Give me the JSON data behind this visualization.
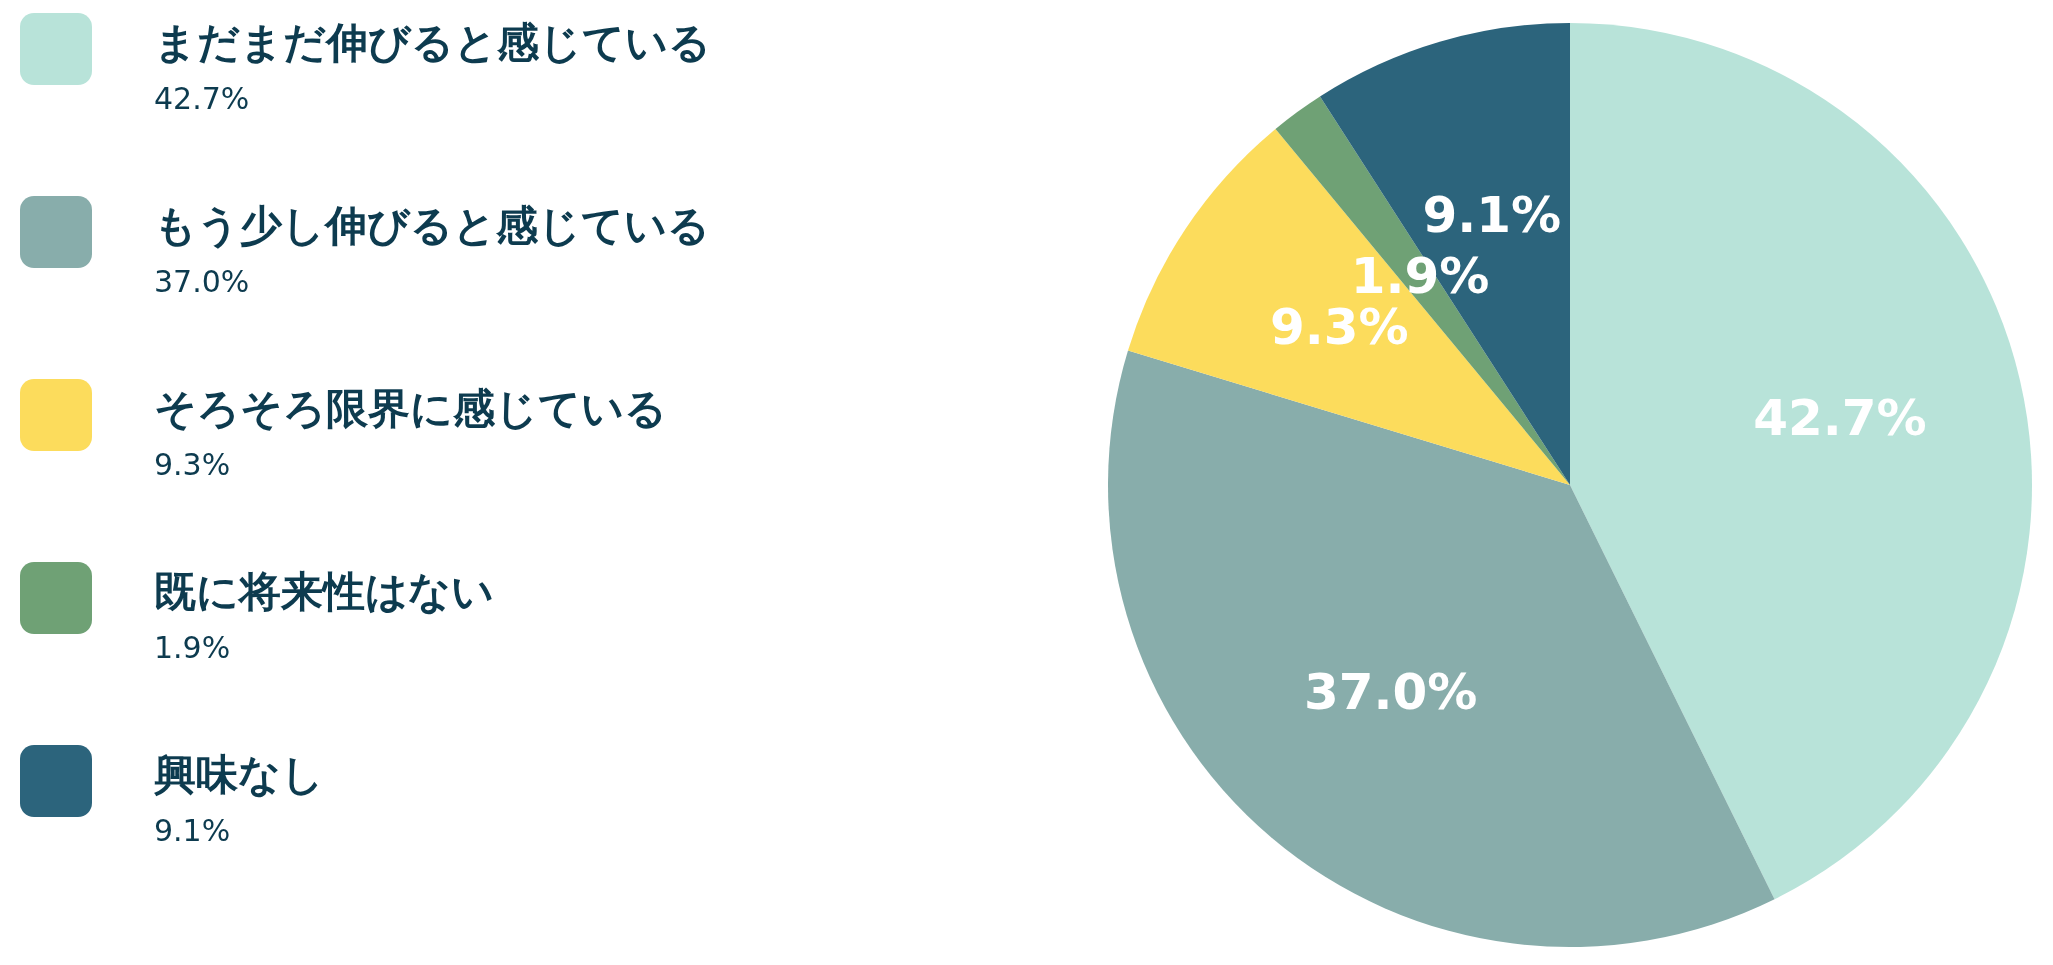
{
  "chart_data": {
    "type": "pie",
    "categories": [
      "まだまだ伸びると感じている",
      "もう少し伸びると感じている",
      "そろそろ限界に感じている",
      "既に将来性はない",
      "興味なし"
    ],
    "values": [
      42.7,
      37.0,
      9.3,
      1.9,
      9.1
    ],
    "colors": [
      "#b8e3d9",
      "#88adab",
      "#fcdc5c",
      "#6fa175",
      "#2c647c"
    ],
    "value_labels": [
      "42.7%",
      "37.0%",
      "9.3%",
      "1.9%",
      "9.1%"
    ],
    "legend": "left"
  }
}
